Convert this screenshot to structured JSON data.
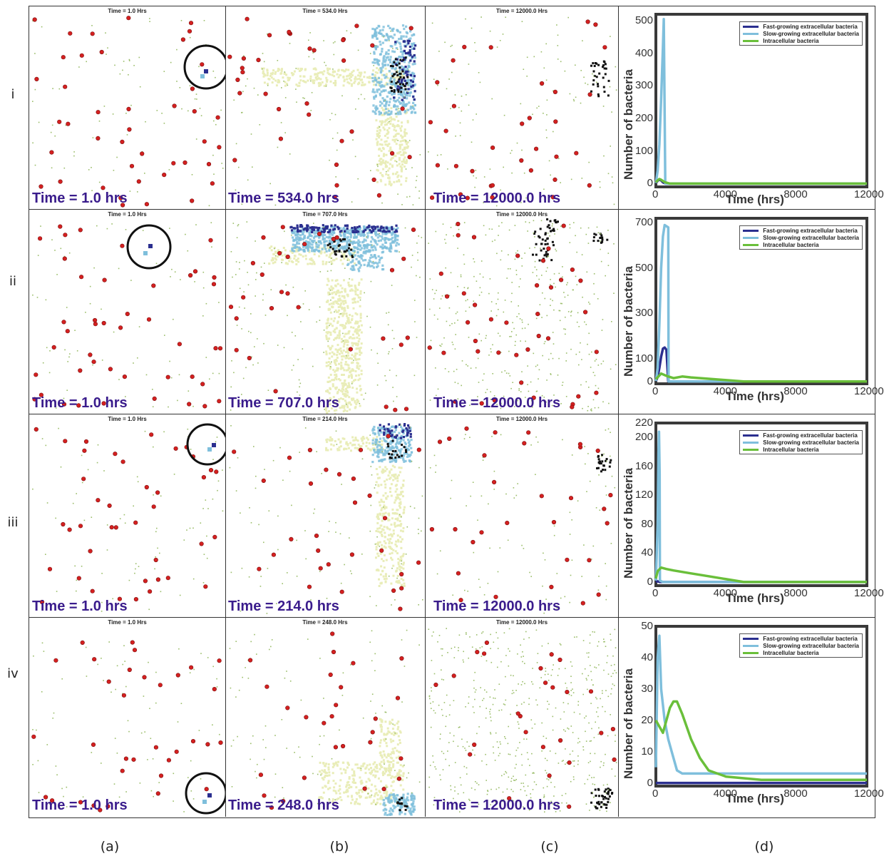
{
  "row_labels": [
    "i",
    "ii",
    "iii",
    "iv"
  ],
  "column_labels": [
    "(a)",
    "(b)",
    "(c)",
    "(d)"
  ],
  "panels": {
    "r0c0": {
      "top": "Time = 1.0 Hrs",
      "big": "Time = 1.0 hrs"
    },
    "r0c1": {
      "top": "Time = 534.0 Hrs",
      "big": "Time = 534.0 hrs"
    },
    "r0c2": {
      "top": "Time = 12000.0 Hrs",
      "big": "Time = 12000.0 hrs"
    },
    "r1c0": {
      "top": "Time = 1.0 Hrs",
      "big": "Time = 1.0 hrs"
    },
    "r1c1": {
      "top": "Time = 707.0 Hrs",
      "big": "Time = 707.0 hrs"
    },
    "r1c2": {
      "top": "Time = 12000.0 Hrs",
      "big": "Time = 12000.0 hrs"
    },
    "r2c0": {
      "top": "Time = 1.0 Hrs",
      "big": "Time = 1.0 hrs"
    },
    "r2c1": {
      "top": "Time = 214.0 Hrs",
      "big": "Time = 214.0 hrs"
    },
    "r2c2": {
      "top": "Time = 12000.0 Hrs",
      "big": "Time = 12000.0 hrs"
    },
    "r3c0": {
      "top": "Time = 1.0 Hrs",
      "big": "Time = 1.0 hrs"
    },
    "r3c1": {
      "top": "Time = 248.0 Hrs",
      "big": "Time = 248.0 hrs"
    },
    "r3c2": {
      "top": "Time = 12000.0 Hrs",
      "big": "Time = 12000.0 hrs"
    }
  },
  "colors": {
    "macrophage": "#d42020",
    "fast": "#2b2f8f",
    "slow": "#7fbfdc",
    "intra": "#6abf3a",
    "caseum": "#111111",
    "tcell": "#9bbd6a",
    "chemokine": "#f0f0c0"
  },
  "chart_data": [
    {
      "type": "line",
      "xlabel": "Time (hrs)",
      "ylabel": "Number of bacteria",
      "xticks": [
        0,
        4000,
        8000,
        12000
      ],
      "yticks": [
        0,
        100,
        200,
        300,
        400,
        500
      ],
      "ytick_labels": [
        "0",
        "100",
        "200",
        "300",
        "400",
        "500"
      ],
      "xlim": [
        0,
        12000
      ],
      "ylim": [
        -10,
        520
      ],
      "legend": "top-right",
      "series": [
        {
          "name": "Fast-growing extracellular bacteria",
          "color": "#2b2f8f",
          "x": [
            0,
            60,
            120,
            200,
            300,
            400,
            534,
            12000
          ],
          "y": [
            2,
            6,
            10,
            12,
            10,
            4,
            0,
            0
          ]
        },
        {
          "name": "Slow-growing extracellular bacteria",
          "color": "#7fbfdc",
          "x": [
            0,
            100,
            200,
            300,
            400,
            450,
            534,
            560,
            12000
          ],
          "y": [
            2,
            40,
            120,
            260,
            420,
            505,
            0,
            0,
            0
          ]
        },
        {
          "name": "Intracellular bacteria",
          "color": "#6abf3a",
          "x": [
            0,
            100,
            200,
            300,
            400,
            534,
            800,
            12000
          ],
          "y": [
            4,
            10,
            14,
            12,
            8,
            4,
            0,
            0
          ]
        }
      ]
    },
    {
      "type": "line",
      "xlabel": "Time (hrs)",
      "ylabel": "Number of bacteria",
      "xticks": [
        0,
        4000,
        8000,
        12000
      ],
      "yticks": [
        0,
        100,
        300,
        500,
        700
      ],
      "ytick_labels": [
        "0",
        "100",
        "300",
        "500",
        "700"
      ],
      "xlim": [
        0,
        12000
      ],
      "ylim": [
        -10,
        720
      ],
      "legend": "top-right",
      "series": [
        {
          "name": "Fast-growing extracellular bacteria",
          "color": "#2b2f8f",
          "x": [
            0,
            100,
            200,
            300,
            400,
            500,
            600,
            707,
            12000
          ],
          "y": [
            2,
            20,
            60,
            110,
            145,
            150,
            140,
            0,
            0
          ]
        },
        {
          "name": "Slow-growing extracellular bacteria",
          "color": "#7fbfdc",
          "x": [
            0,
            100,
            200,
            300,
            400,
            500,
            600,
            707,
            720,
            12000
          ],
          "y": [
            2,
            60,
            250,
            500,
            640,
            690,
            685,
            680,
            0,
            0
          ]
        },
        {
          "name": "Intracellular bacteria",
          "color": "#6abf3a",
          "x": [
            0,
            300,
            600,
            1000,
            1500,
            2000,
            3000,
            4000,
            5000,
            12000
          ],
          "y": [
            10,
            35,
            25,
            15,
            22,
            18,
            12,
            6,
            0,
            0
          ]
        }
      ]
    },
    {
      "type": "line",
      "xlabel": "Time (hrs)",
      "ylabel": "Number of bacteria",
      "xticks": [
        0,
        4000,
        8000,
        12000
      ],
      "yticks": [
        0,
        40,
        80,
        120,
        160,
        200,
        220
      ],
      "ytick_labels": [
        "0",
        "40",
        "80",
        "120",
        "160",
        "200",
        "220"
      ],
      "xlim": [
        0,
        12000
      ],
      "ylim": [
        -5,
        220
      ],
      "legend": "top-right",
      "series": [
        {
          "name": "Fast-growing extracellular bacteria",
          "color": "#2b2f8f",
          "x": [
            0,
            100,
            214,
            12000
          ],
          "y": [
            0,
            1,
            0,
            0
          ]
        },
        {
          "name": "Slow-growing extracellular bacteria",
          "color": "#7fbfdc",
          "x": [
            0,
            100,
            150,
            180,
            214,
            230,
            400,
            12000
          ],
          "y": [
            2,
            80,
            180,
            208,
            150,
            2,
            0,
            0
          ]
        },
        {
          "name": "Intracellular bacteria",
          "color": "#6abf3a",
          "x": [
            0,
            100,
            300,
            600,
            1000,
            2000,
            3000,
            4000,
            5000,
            12000
          ],
          "y": [
            5,
            15,
            20,
            18,
            16,
            12,
            8,
            4,
            0,
            0
          ]
        }
      ]
    },
    {
      "type": "line",
      "xlabel": "Time (hrs)",
      "ylabel": "Number of bacteria",
      "xticks": [
        0,
        4000,
        8000,
        12000
      ],
      "yticks": [
        0,
        10,
        20,
        30,
        40,
        50
      ],
      "ytick_labels": [
        "0",
        "10",
        "20",
        "30",
        "40",
        "50"
      ],
      "xlim": [
        0,
        12000
      ],
      "ylim": [
        -1,
        50
      ],
      "legend": "top-right",
      "series": [
        {
          "name": "Fast-growing extracellular bacteria",
          "color": "#2b2f8f",
          "x": [
            0,
            12000
          ],
          "y": [
            0,
            0
          ]
        },
        {
          "name": "Slow-growing extracellular bacteria",
          "color": "#7fbfdc",
          "x": [
            0,
            100,
            200,
            300,
            500,
            700,
            900,
            1200,
            1500,
            12000
          ],
          "y": [
            5,
            40,
            47,
            30,
            20,
            14,
            10,
            4,
            3,
            3
          ]
        },
        {
          "name": "Intracellular bacteria",
          "color": "#6abf3a",
          "x": [
            0,
            200,
            400,
            600,
            800,
            1000,
            1200,
            1500,
            2000,
            2500,
            3000,
            4000,
            6000,
            12000
          ],
          "y": [
            20,
            18,
            16,
            20,
            24,
            26,
            26,
            22,
            14,
            8,
            4,
            2,
            1,
            1
          ]
        }
      ]
    }
  ]
}
